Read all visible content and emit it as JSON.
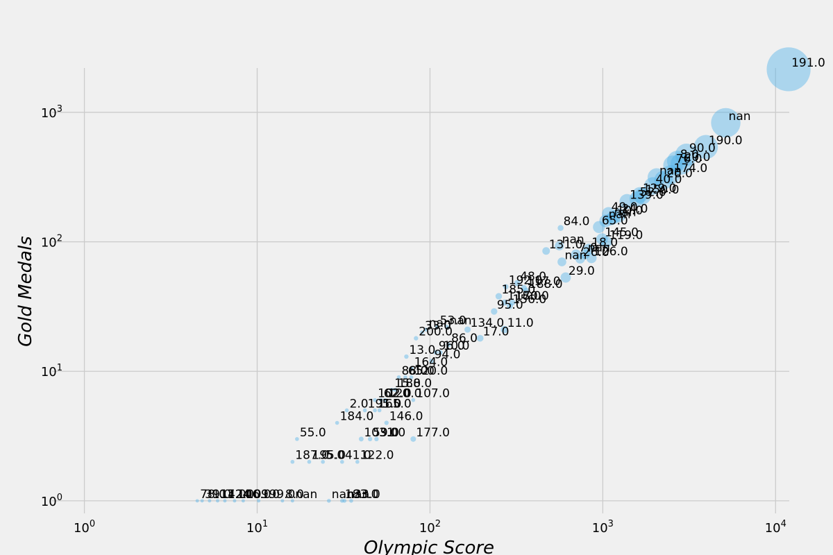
{
  "chart_data": {
    "type": "scatter",
    "xlabel": "Olympic Score",
    "ylabel": "Gold Medals",
    "xscale": "log",
    "yscale": "log",
    "xlim": [
      0.65,
      12000
    ],
    "ylim": [
      0.8,
      2200
    ],
    "grid": true,
    "marker_color": "#56b4e9",
    "marker_alpha": 0.45,
    "background": "#f0f0f0",
    "grid_color": "#cbcbcb",
    "x_ticks": [
      {
        "value": 1,
        "base": "10",
        "exp": "0"
      },
      {
        "value": 10,
        "base": "10",
        "exp": "1"
      },
      {
        "value": 100,
        "base": "10",
        "exp": "2"
      },
      {
        "value": 1000,
        "base": "10",
        "exp": "3"
      },
      {
        "value": 10000,
        "base": "10",
        "exp": "4"
      }
    ],
    "y_ticks": [
      {
        "value": 1,
        "base": "10",
        "exp": "0"
      },
      {
        "value": 10,
        "base": "10",
        "exp": "1"
      },
      {
        "value": 100,
        "base": "10",
        "exp": "2"
      },
      {
        "value": 1000,
        "base": "10",
        "exp": "3"
      }
    ],
    "points": [
      {
        "x": 11900,
        "y": 2150,
        "size": 1000,
        "label": "191.0"
      },
      {
        "x": 5150,
        "y": 830,
        "size": 450,
        "label": "nan"
      },
      {
        "x": 3950,
        "y": 540,
        "size": 300,
        "label": "190.0"
      },
      {
        "x": 3050,
        "y": 470,
        "size": 260,
        "label": "90.0"
      },
      {
        "x": 2850,
        "y": 400,
        "size": 240,
        "label": "20.0"
      },
      {
        "x": 2700,
        "y": 420,
        "size": 220,
        "label": "8.0"
      },
      {
        "x": 2550,
        "y": 390,
        "size": 200,
        "label": "76.0"
      },
      {
        "x": 2480,
        "y": 330,
        "size": 190,
        "label": "174.0"
      },
      {
        "x": 2250,
        "y": 300,
        "size": 180,
        "label": "20.0"
      },
      {
        "x": 2050,
        "y": 315,
        "size": 170,
        "label": "nan"
      },
      {
        "x": 1950,
        "y": 270,
        "size": 160,
        "label": "40.0"
      },
      {
        "x": 1700,
        "y": 225,
        "size": 140,
        "label": "150.0"
      },
      {
        "x": 1640,
        "y": 230,
        "size": 130,
        "label": "129.0"
      },
      {
        "x": 1580,
        "y": 215,
        "size": 120,
        "label": "52.0"
      },
      {
        "x": 1380,
        "y": 205,
        "size": 115,
        "label": "139.0"
      },
      {
        "x": 1240,
        "y": 160,
        "size": 100,
        "label": "24.0"
      },
      {
        "x": 1160,
        "y": 155,
        "size": 95,
        "label": "10.0"
      },
      {
        "x": 1080,
        "y": 165,
        "size": 90,
        "label": "49.0"
      },
      {
        "x": 1040,
        "y": 145,
        "size": 85,
        "label": "nan"
      },
      {
        "x": 1120,
        "y": 150,
        "size": 80,
        "label": "nan"
      },
      {
        "x": 950,
        "y": 130,
        "size": 75,
        "label": "65.0"
      },
      {
        "x": 990,
        "y": 105,
        "size": 70,
        "label": "145.0"
      },
      {
        "x": 1050,
        "y": 100,
        "size": 65,
        "label": "119.0"
      },
      {
        "x": 830,
        "y": 88,
        "size": 60,
        "label": "18.0"
      },
      {
        "x": 860,
        "y": 75,
        "size": 55,
        "label": "126.0"
      },
      {
        "x": 700,
        "y": 80,
        "size": 50,
        "label": "7.0"
      },
      {
        "x": 740,
        "y": 74,
        "size": 48,
        "label": "26.0"
      },
      {
        "x": 790,
        "y": 80,
        "size": 46,
        "label": "nan"
      },
      {
        "x": 560,
        "y": 93,
        "size": 42,
        "label": "nan"
      },
      {
        "x": 580,
        "y": 70,
        "size": 40,
        "label": "nan"
      },
      {
        "x": 470,
        "y": 85,
        "size": 30,
        "label": "131.0"
      },
      {
        "x": 610,
        "y": 53,
        "size": 55,
        "label": "29.0"
      },
      {
        "x": 570,
        "y": 128,
        "size": 18,
        "label": "84.0"
      },
      {
        "x": 275,
        "y": 45,
        "size": 14,
        "label": "192.0"
      },
      {
        "x": 320,
        "y": 48,
        "size": 20,
        "label": "48.0"
      },
      {
        "x": 350,
        "y": 44,
        "size": 18,
        "label": "117.0"
      },
      {
        "x": 360,
        "y": 42,
        "size": 16,
        "label": "188.0"
      },
      {
        "x": 250,
        "y": 38,
        "size": 22,
        "label": "185.0"
      },
      {
        "x": 270,
        "y": 34,
        "size": 20,
        "label": "118.0"
      },
      {
        "x": 300,
        "y": 34,
        "size": 18,
        "label": "170.0"
      },
      {
        "x": 290,
        "y": 32,
        "size": 20,
        "label": "156.0"
      },
      {
        "x": 235,
        "y": 29,
        "size": 22,
        "label": "95.0"
      },
      {
        "x": 270,
        "y": 21,
        "size": 28,
        "label": "11.0"
      },
      {
        "x": 165,
        "y": 21,
        "size": 20,
        "label": "134.0"
      },
      {
        "x": 195,
        "y": 18,
        "size": 24,
        "label": "17.0"
      },
      {
        "x": 125,
        "y": 22,
        "size": 10,
        "label": "nan"
      },
      {
        "x": 90,
        "y": 20,
        "size": 8,
        "label": "33.0"
      },
      {
        "x": 95,
        "y": 21,
        "size": 8,
        "label": "nan"
      },
      {
        "x": 110,
        "y": 22,
        "size": 8,
        "label": "53.0"
      },
      {
        "x": 83,
        "y": 18,
        "size": 10,
        "label": "200.0"
      },
      {
        "x": 128,
        "y": 16,
        "size": 10,
        "label": "86.0"
      },
      {
        "x": 108,
        "y": 14,
        "size": 10,
        "label": "96.0"
      },
      {
        "x": 115,
        "y": 14,
        "size": 10,
        "label": "10.0"
      },
      {
        "x": 102,
        "y": 12,
        "size": 10,
        "label": "94.0"
      },
      {
        "x": 73,
        "y": 13,
        "size": 10,
        "label": "13.0"
      },
      {
        "x": 78,
        "y": 10.5,
        "size": 10,
        "label": "164.0"
      },
      {
        "x": 66,
        "y": 9,
        "size": 8,
        "label": "88.0"
      },
      {
        "x": 72,
        "y": 9,
        "size": 8,
        "label": "65.0"
      },
      {
        "x": 78,
        "y": 9,
        "size": 8,
        "label": "120.0"
      },
      {
        "x": 60,
        "y": 7.2,
        "size": 8,
        "label": "15.0"
      },
      {
        "x": 63,
        "y": 7.2,
        "size": 8,
        "label": "188.0"
      },
      {
        "x": 48,
        "y": 6,
        "size": 8,
        "label": "102.0"
      },
      {
        "x": 52,
        "y": 6,
        "size": 8,
        "label": "62.0"
      },
      {
        "x": 55,
        "y": 6,
        "size": 8,
        "label": "120.0"
      },
      {
        "x": 80,
        "y": 6,
        "size": 8,
        "label": "107.0"
      },
      {
        "x": 33,
        "y": 5,
        "size": 8,
        "label": "2.0"
      },
      {
        "x": 42,
        "y": 5,
        "size": 8,
        "label": "191.0"
      },
      {
        "x": 48,
        "y": 5,
        "size": 8,
        "label": "165.0"
      },
      {
        "x": 51,
        "y": 5,
        "size": 8,
        "label": "5.0"
      },
      {
        "x": 29,
        "y": 4,
        "size": 8,
        "label": "184.0"
      },
      {
        "x": 56,
        "y": 4,
        "size": 10,
        "label": "146.0"
      },
      {
        "x": 17,
        "y": 3,
        "size": 8,
        "label": "55.0"
      },
      {
        "x": 40,
        "y": 3,
        "size": 12,
        "label": "103.0"
      },
      {
        "x": 45,
        "y": 3,
        "size": 10,
        "label": "59.0"
      },
      {
        "x": 49,
        "y": 3,
        "size": 10,
        "label": "31.0"
      },
      {
        "x": 80,
        "y": 3,
        "size": 16,
        "label": "177.0"
      },
      {
        "x": 16,
        "y": 2,
        "size": 8,
        "label": "187.0"
      },
      {
        "x": 20,
        "y": 2,
        "size": 8,
        "label": "195.0"
      },
      {
        "x": 24,
        "y": 2,
        "size": 8,
        "label": "5.0"
      },
      {
        "x": 31,
        "y": 2,
        "size": 8,
        "label": "41.0"
      },
      {
        "x": 38,
        "y": 2,
        "size": 8,
        "label": "122.0"
      },
      {
        "x": 4.5,
        "y": 1,
        "size": 6,
        "label": "78.0"
      },
      {
        "x": 4.8,
        "y": 1,
        "size": 6,
        "label": "39.0"
      },
      {
        "x": 5.3,
        "y": 1,
        "size": 6,
        "label": "117.0"
      },
      {
        "x": 5.9,
        "y": 1,
        "size": 6,
        "label": "142.0"
      },
      {
        "x": 6.5,
        "y": 1,
        "size": 6,
        "label": "124.0"
      },
      {
        "x": 7.4,
        "y": 1,
        "size": 6,
        "label": "106.0"
      },
      {
        "x": 8.3,
        "y": 1,
        "size": 6,
        "label": "109.0"
      },
      {
        "x": 10.2,
        "y": 1,
        "size": 6,
        "label": "199.0"
      },
      {
        "x": 14,
        "y": 1,
        "size": 6,
        "label": "8.0"
      },
      {
        "x": 16,
        "y": 1,
        "size": 6,
        "label": "nan"
      },
      {
        "x": 26,
        "y": 1,
        "size": 8,
        "label": "nan"
      },
      {
        "x": 31,
        "y": 1,
        "size": 8,
        "label": "183.0"
      },
      {
        "x": 32,
        "y": 1,
        "size": 8,
        "label": "nan"
      },
      {
        "x": 35,
        "y": 1,
        "size": 8,
        "label": "33.0"
      }
    ]
  }
}
